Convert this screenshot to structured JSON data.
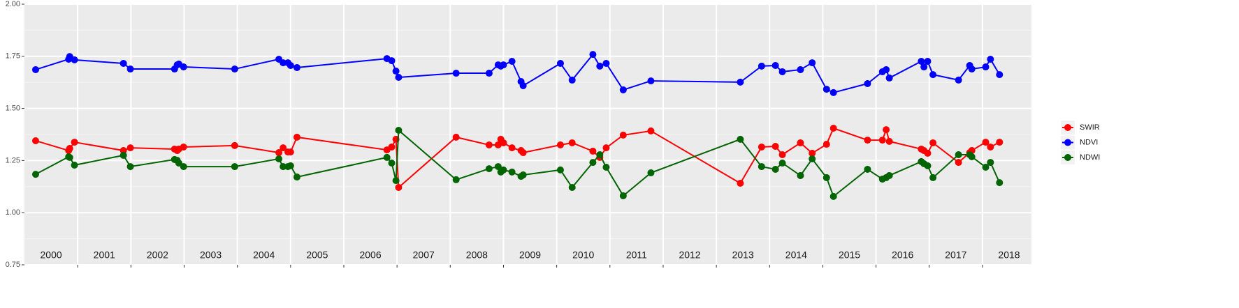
{
  "chart_data": {
    "type": "line",
    "x": [
      2000.21,
      2000.83,
      2000.85,
      2000.94,
      2001.86,
      2001.99,
      2002.82,
      2002.87,
      2002.9,
      2002.99,
      2003.95,
      2004.78,
      2004.86,
      2004.95,
      2005.0,
      2005.12,
      2006.81,
      2006.9,
      2006.98,
      2007.03,
      2008.11,
      2008.73,
      2008.9,
      2008.95,
      2009.0,
      2009.16,
      2009.33,
      2009.37,
      2010.07,
      2010.29,
      2010.68,
      2010.81,
      2010.93,
      2011.25,
      2011.77,
      2013.45,
      2013.85,
      2014.11,
      2014.24,
      2014.58,
      2014.8,
      2015.07,
      2015.2,
      2015.84,
      2016.12,
      2016.19,
      2016.25,
      2016.85,
      2016.9,
      2016.97,
      2017.07,
      2017.55,
      2017.76,
      2017.8,
      2018.06,
      2018.15,
      2018.32
    ],
    "series": [
      {
        "name": "SWIR",
        "color": "#ff0000",
        "values": [
          1.345,
          1.298,
          1.308,
          1.338,
          1.298,
          1.311,
          1.305,
          1.298,
          1.305,
          1.315,
          1.322,
          1.288,
          1.311,
          1.291,
          1.291,
          1.362,
          1.301,
          1.315,
          1.352,
          1.121,
          1.362,
          1.325,
          1.325,
          1.352,
          1.335,
          1.311,
          1.298,
          1.288,
          1.325,
          1.335,
          1.295,
          1.265,
          1.311,
          1.372,
          1.392,
          1.141,
          1.315,
          1.318,
          1.278,
          1.335,
          1.285,
          1.328,
          1.405,
          1.348,
          1.348,
          1.398,
          1.342,
          1.305,
          1.298,
          1.285,
          1.335,
          1.241,
          1.288,
          1.298,
          1.338,
          1.315,
          1.338
        ]
      },
      {
        "name": "NDVI",
        "color": "#0000ff",
        "values": [
          1.686,
          1.736,
          1.749,
          1.733,
          1.716,
          1.689,
          1.689,
          1.709,
          1.713,
          1.699,
          1.689,
          1.736,
          1.719,
          1.719,
          1.706,
          1.696,
          1.739,
          1.729,
          1.679,
          1.649,
          1.669,
          1.669,
          1.709,
          1.703,
          1.709,
          1.726,
          1.629,
          1.609,
          1.716,
          1.636,
          1.759,
          1.703,
          1.716,
          1.589,
          1.632,
          1.626,
          1.703,
          1.706,
          1.676,
          1.686,
          1.719,
          1.592,
          1.576,
          1.619,
          1.676,
          1.686,
          1.646,
          1.726,
          1.699,
          1.726,
          1.662,
          1.636,
          1.706,
          1.689,
          1.699,
          1.736,
          1.662
        ]
      },
      {
        "name": "NDWI",
        "color": "#006400",
        "values": [
          1.184,
          1.268,
          1.265,
          1.228,
          1.275,
          1.221,
          1.255,
          1.251,
          1.238,
          1.221,
          1.221,
          1.258,
          1.221,
          1.221,
          1.225,
          1.171,
          1.265,
          1.238,
          1.154,
          1.395,
          1.158,
          1.211,
          1.221,
          1.195,
          1.205,
          1.195,
          1.174,
          1.181,
          1.205,
          1.121,
          1.241,
          1.278,
          1.218,
          1.081,
          1.191,
          1.352,
          1.221,
          1.208,
          1.238,
          1.178,
          1.258,
          1.168,
          1.078,
          1.208,
          1.161,
          1.168,
          1.178,
          1.245,
          1.235,
          1.225,
          1.168,
          1.278,
          1.278,
          1.268,
          1.218,
          1.241,
          1.144
        ]
      }
    ],
    "xlim": [
      2000,
      2018.92
    ],
    "xticks": [
      {
        "value": 2000.5,
        "label": "2000"
      },
      {
        "value": 2001.5,
        "label": "2001"
      },
      {
        "value": 2002.5,
        "label": "2002"
      },
      {
        "value": 2003.5,
        "label": "2003"
      },
      {
        "value": 2004.5,
        "label": "2004"
      },
      {
        "value": 2005.5,
        "label": "2005"
      },
      {
        "value": 2006.5,
        "label": "2006"
      },
      {
        "value": 2007.5,
        "label": "2007"
      },
      {
        "value": 2008.5,
        "label": "2008"
      },
      {
        "value": 2009.5,
        "label": "2009"
      },
      {
        "value": 2010.5,
        "label": "2010"
      },
      {
        "value": 2011.5,
        "label": "2011"
      },
      {
        "value": 2012.5,
        "label": "2012"
      },
      {
        "value": 2013.5,
        "label": "2013"
      },
      {
        "value": 2014.5,
        "label": "2014"
      },
      {
        "value": 2015.5,
        "label": "2015"
      },
      {
        "value": 2016.5,
        "label": "2016"
      },
      {
        "value": 2017.5,
        "label": "2017"
      },
      {
        "value": 2018.5,
        "label": "2018"
      }
    ],
    "xgrid": [
      2001,
      2002,
      2003,
      2004,
      2005,
      2006,
      2007,
      2008,
      2009,
      2010,
      2011,
      2012,
      2013,
      2014,
      2015,
      2016,
      2017,
      2018
    ],
    "ylim": [
      0.75,
      2.0
    ],
    "yticks": [
      {
        "value": 0.75,
        "label": "0.75"
      },
      {
        "value": 1.0,
        "label": "1.00"
      },
      {
        "value": 1.25,
        "label": "1.25"
      },
      {
        "value": 1.5,
        "label": "1.50"
      },
      {
        "value": 1.75,
        "label": "1.75"
      },
      {
        "value": 2.0,
        "label": "2.00"
      }
    ],
    "grid": true,
    "legend": "right"
  }
}
